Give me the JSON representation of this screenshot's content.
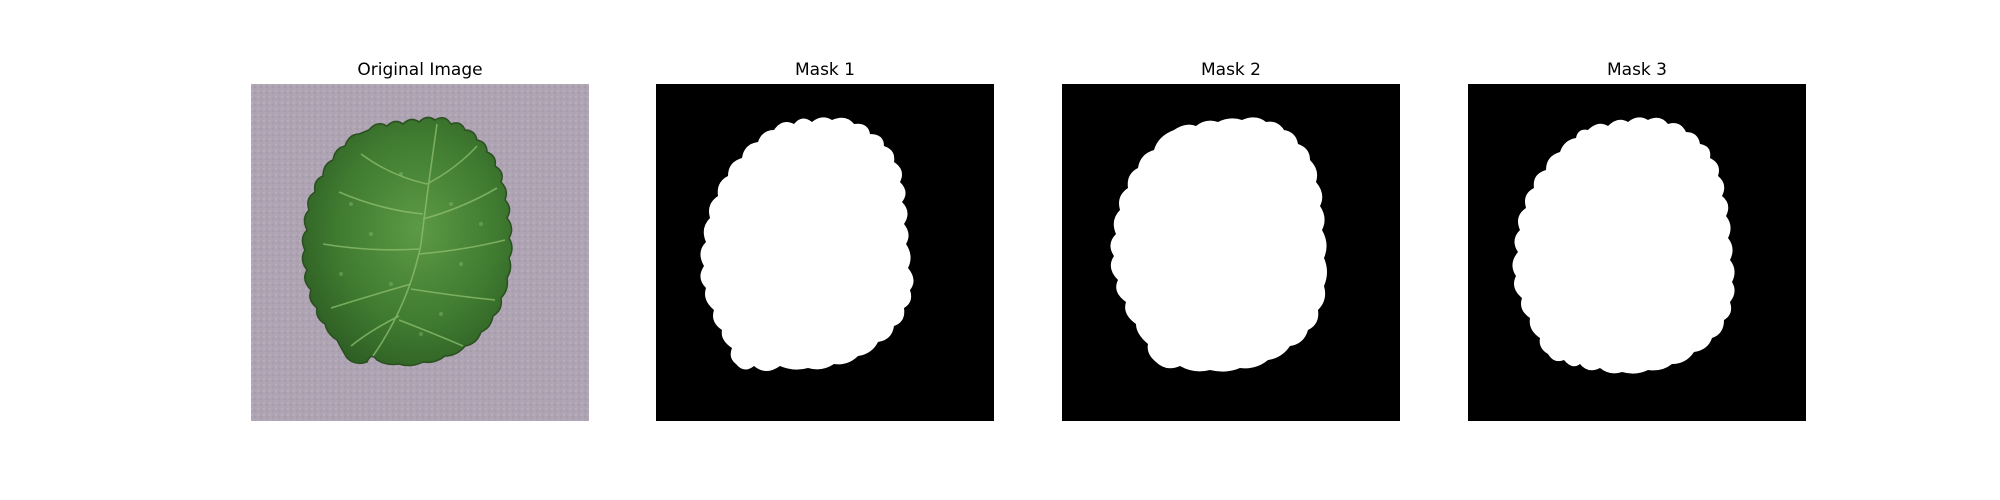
{
  "figure": {
    "panels": [
      {
        "title": "Original Image",
        "kind": "photo"
      },
      {
        "title": "Mask 1",
        "kind": "mask"
      },
      {
        "title": "Mask 2",
        "kind": "mask"
      },
      {
        "title": "Mask 3",
        "kind": "mask"
      }
    ]
  },
  "colors": {
    "photo_background": "#aea3b2",
    "leaf_dark": "#2f5e24",
    "leaf_mid": "#4f8a3a",
    "leaf_light": "#7fb06a",
    "mask_background": "#000000",
    "mask_foreground": "#ffffff"
  }
}
